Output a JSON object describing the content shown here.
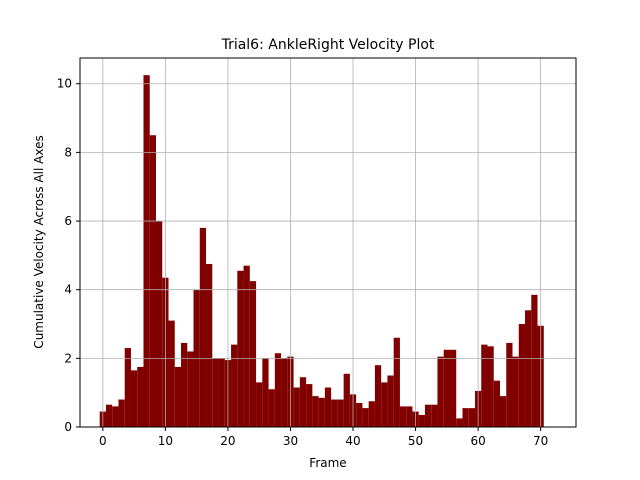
{
  "chart_data": {
    "type": "bar",
    "title": "Trial6: AnkleRight Velocity Plot",
    "xlabel": "Frame",
    "ylabel": "Cumulative Velocity Across All Axes",
    "xlim": [
      -3.65,
      75.65
    ],
    "ylim": [
      0,
      10.75
    ],
    "xticks": [
      0,
      10,
      20,
      30,
      40,
      50,
      60,
      70
    ],
    "yticks": [
      0,
      2,
      4,
      6,
      8,
      10
    ],
    "grid": true,
    "bar_color": "#800000",
    "bar_width": 1.0,
    "x": [
      0,
      1,
      2,
      3,
      4,
      5,
      6,
      7,
      8,
      9,
      10,
      11,
      12,
      13,
      14,
      15,
      16,
      17,
      18,
      19,
      20,
      21,
      22,
      23,
      24,
      25,
      26,
      27,
      28,
      29,
      30,
      31,
      32,
      33,
      34,
      35,
      36,
      37,
      38,
      39,
      40,
      41,
      42,
      43,
      44,
      45,
      46,
      47,
      48,
      49,
      50,
      51,
      52,
      53,
      54,
      55,
      56,
      57,
      58,
      59,
      60,
      61,
      62,
      63,
      64,
      65,
      66,
      67,
      68,
      69,
      70,
      71,
      72
    ],
    "values": [
      0.45,
      0.65,
      0.6,
      0.8,
      2.3,
      1.65,
      1.75,
      10.25,
      8.5,
      6.0,
      4.35,
      3.1,
      1.75,
      2.45,
      2.2,
      4.0,
      5.8,
      4.75,
      2.0,
      2.0,
      1.95,
      2.4,
      4.55,
      4.7,
      4.25,
      1.3,
      2.0,
      1.1,
      2.15,
      2.0,
      2.05,
      1.15,
      1.45,
      1.25,
      0.9,
      0.85,
      1.15,
      0.8,
      0.8,
      1.55,
      0.95,
      0.7,
      0.55,
      0.75,
      1.8,
      1.3,
      1.5,
      2.6,
      0.6,
      0.6,
      0.45,
      0.35,
      0.65,
      0.65,
      2.05,
      2.25,
      2.25,
      0.25,
      0.55,
      0.55,
      1.05,
      2.4,
      2.35,
      1.35,
      0.9,
      2.45,
      2.05,
      3.0,
      3.4,
      3.85,
      2.95,
      0,
      0
    ]
  }
}
